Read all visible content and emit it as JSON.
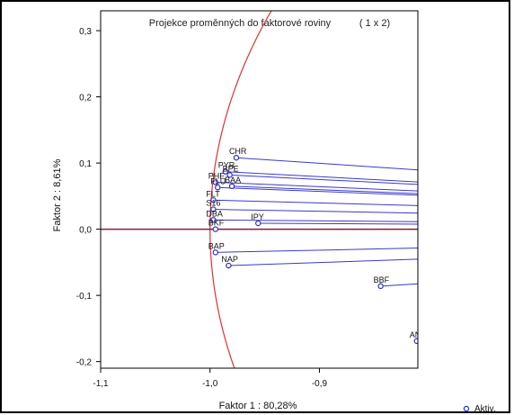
{
  "chart_data": {
    "type": "scatter",
    "title": "Projekce proměnných do faktorové roviny",
    "subtitle": "( 1 x  2)",
    "xlabel": "Faktor 1 : 80,28%",
    "ylabel": "Faktor 2 : 8,61%",
    "xlim": [
      -1.1,
      -0.81
    ],
    "ylim": [
      -0.21,
      0.33
    ],
    "x_ticks": [
      -1.1,
      -1.0,
      -0.9
    ],
    "x_tick_labels": [
      "-1,1",
      "-1,0",
      "-0,9"
    ],
    "y_ticks": [
      -0.2,
      -0.1,
      0.0,
      0.1,
      0.2,
      0.3
    ],
    "y_tick_labels": [
      "-0,2",
      "-0,1",
      "0,0",
      "0,1",
      "0,2",
      "0,3"
    ],
    "grid": false,
    "unit_circle": true,
    "reference_line_y": 0,
    "legend": {
      "position": "bottom-right",
      "entries": [
        "Aktiv."
      ]
    },
    "colors": {
      "points": "#2b2bd0",
      "vectors": "#3a3ac8",
      "circle": "#e53030",
      "zero_line": "#8b1a3a",
      "axes": "#000000"
    },
    "points": [
      {
        "label": "CHR",
        "x": -0.976,
        "y": 0.108
      },
      {
        "label": "PYR",
        "x": -0.986,
        "y": 0.087
      },
      {
        "label": "BPE",
        "x": -0.982,
        "y": 0.082
      },
      {
        "label": "PHE",
        "x": -0.995,
        "y": 0.071
      },
      {
        "label": "BAA",
        "x": -0.98,
        "y": 0.065
      },
      {
        "label": "FLU",
        "x": -0.993,
        "y": 0.063
      },
      {
        "label": "FLT",
        "x": -0.997,
        "y": 0.044
      },
      {
        "label": "S16",
        "x": -0.997,
        "y": 0.03
      },
      {
        "label": "IPY",
        "x": -0.956,
        "y": 0.009
      },
      {
        "label": "DBA",
        "x": -0.997,
        "y": 0.014
      },
      {
        "label": "BKF",
        "x": -0.995,
        "y": 0.0
      },
      {
        "label": "BAP",
        "x": -0.995,
        "y": -0.035
      },
      {
        "label": "NAP",
        "x": -0.983,
        "y": -0.055
      },
      {
        "label": "BBF",
        "x": -0.844,
        "y": -0.086
      },
      {
        "label": "ANT",
        "x": -0.811,
        "y": -0.169
      }
    ]
  }
}
